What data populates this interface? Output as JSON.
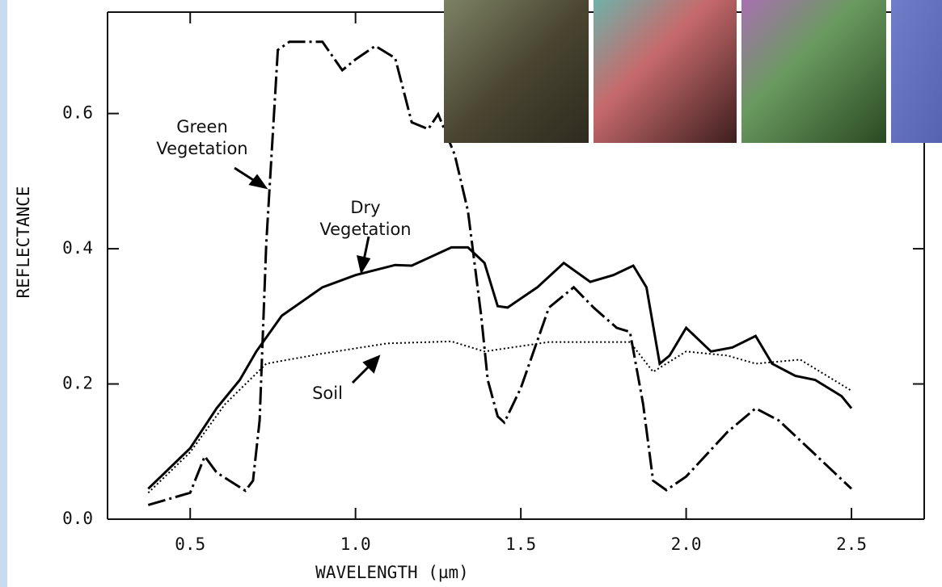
{
  "chart_data": {
    "type": "line",
    "x_label": "WAVELENGTH  (µm)",
    "y_label": "REFLECTANCE",
    "xlim": [
      0.25,
      2.72
    ],
    "ylim": [
      0,
      0.75
    ],
    "xticks": [
      0.5,
      {
        "value": 1,
        "label": "1.0"
      },
      1.5,
      {
        "value": 2,
        "label": "2.0"
      },
      2.5
    ],
    "yticks": [
      {
        "value": 0,
        "label": "0.0"
      },
      0.2,
      0.4,
      0.6
    ],
    "series": [
      {
        "name": "Green Vegetation",
        "color": "#000000",
        "style": "dash-dot",
        "x": [
          0.373,
          0.5,
          0.544,
          0.58,
          0.667,
          0.69,
          0.71,
          0.73,
          0.765,
          0.8,
          0.9,
          0.96,
          1.0,
          1.06,
          1.12,
          1.17,
          1.22,
          1.25,
          1.3,
          1.34,
          1.38,
          1.4,
          1.43,
          1.45,
          1.5,
          1.585,
          1.66,
          1.72,
          1.79,
          1.83,
          1.87,
          1.9,
          1.94,
          2.0,
          2.125,
          2.21,
          2.28,
          2.37,
          2.5
        ],
        "values": [
          0.021,
          0.039,
          0.093,
          0.069,
          0.042,
          0.057,
          0.146,
          0.408,
          0.694,
          0.706,
          0.706,
          0.664,
          0.68,
          0.7,
          0.682,
          0.587,
          0.577,
          0.599,
          0.539,
          0.456,
          0.301,
          0.206,
          0.152,
          0.143,
          0.194,
          0.313,
          0.343,
          0.313,
          0.283,
          0.277,
          0.17,
          0.057,
          0.043,
          0.063,
          0.129,
          0.164,
          0.146,
          0.105,
          0.045
        ]
      },
      {
        "name": "Dry Vegetation",
        "color": "#000000",
        "style": "solid",
        "x": [
          0.373,
          0.5,
          0.58,
          0.65,
          0.7,
          0.777,
          0.9,
          1.0,
          1.12,
          1.17,
          1.29,
          1.34,
          1.39,
          1.43,
          1.46,
          1.55,
          1.63,
          1.71,
          1.78,
          1.84,
          1.88,
          1.92,
          1.95,
          2.0,
          2.075,
          2.14,
          2.21,
          2.26,
          2.33,
          2.39,
          2.47,
          2.5
        ],
        "values": [
          0.045,
          0.105,
          0.164,
          0.206,
          0.248,
          0.301,
          0.343,
          0.361,
          0.376,
          0.375,
          0.402,
          0.402,
          0.379,
          0.315,
          0.313,
          0.343,
          0.379,
          0.351,
          0.361,
          0.375,
          0.343,
          0.23,
          0.242,
          0.283,
          0.248,
          0.254,
          0.271,
          0.23,
          0.212,
          0.206,
          0.182,
          0.164
        ]
      },
      {
        "name": "Soil",
        "color": "#000000",
        "style": "dotted",
        "x": [
          0.373,
          0.5,
          0.605,
          0.73,
          0.9,
          1.096,
          1.29,
          1.39,
          1.585,
          1.83,
          1.9,
          2.0,
          2.125,
          2.21,
          2.345,
          2.5
        ],
        "values": [
          0.039,
          0.099,
          0.17,
          0.23,
          0.245,
          0.26,
          0.263,
          0.248,
          0.262,
          0.262,
          0.218,
          0.248,
          0.242,
          0.23,
          0.236,
          0.19
        ]
      }
    ]
  }
}
